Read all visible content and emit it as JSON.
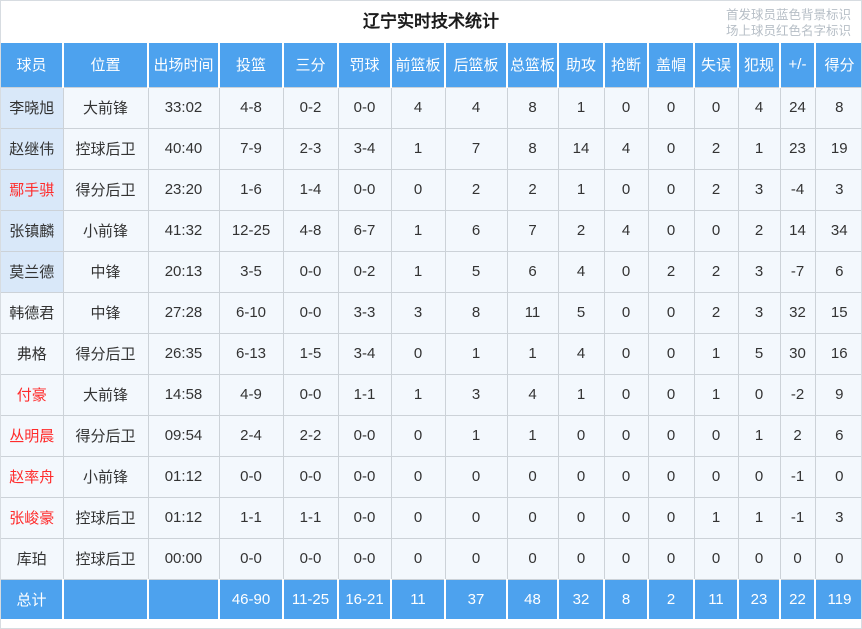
{
  "page": {
    "title": "辽宁实时技术统计",
    "legend_line1": "首发球员蓝色背景标识",
    "legend_line2": "场上球员红色名字标识"
  },
  "colors": {
    "header_blue": "#4da2ee",
    "starter_row_bg": "#d9e8f9",
    "oncourt_red": "#ff2b2b",
    "cell_bg": "#f3f8fd",
    "border": "#ccd2d8"
  },
  "table": {
    "columns": [
      "球员",
      "位置",
      "出场时间",
      "投篮",
      "三分",
      "罚球",
      "前篮板",
      "后篮板",
      "总篮板",
      "助攻",
      "抢断",
      "盖帽",
      "失误",
      "犯规",
      "+/-",
      "得分"
    ],
    "rows": [
      {
        "name": "李晓旭",
        "starter": true,
        "oncourt": false,
        "cells": [
          "大前锋",
          "33:02",
          "4-8",
          "0-2",
          "0-0",
          "4",
          "4",
          "8",
          "1",
          "0",
          "0",
          "0",
          "4",
          "24",
          "8"
        ]
      },
      {
        "name": "赵继伟",
        "starter": true,
        "oncourt": false,
        "cells": [
          "控球后卫",
          "40:40",
          "7-9",
          "2-3",
          "3-4",
          "1",
          "7",
          "8",
          "14",
          "4",
          "0",
          "2",
          "1",
          "23",
          "19"
        ]
      },
      {
        "name": "鄢手骐",
        "starter": true,
        "oncourt": true,
        "cells": [
          "得分后卫",
          "23:20",
          "1-6",
          "1-4",
          "0-0",
          "0",
          "2",
          "2",
          "1",
          "0",
          "0",
          "2",
          "3",
          "-4",
          "3"
        ]
      },
      {
        "name": "张镇麟",
        "starter": true,
        "oncourt": false,
        "cells": [
          "小前锋",
          "41:32",
          "12-25",
          "4-8",
          "6-7",
          "1",
          "6",
          "7",
          "2",
          "4",
          "0",
          "0",
          "2",
          "14",
          "34"
        ]
      },
      {
        "name": "莫兰德",
        "starter": true,
        "oncourt": false,
        "cells": [
          "中锋",
          "20:13",
          "3-5",
          "0-0",
          "0-2",
          "1",
          "5",
          "6",
          "4",
          "0",
          "2",
          "2",
          "3",
          "-7",
          "6"
        ]
      },
      {
        "name": "韩德君",
        "starter": false,
        "oncourt": false,
        "cells": [
          "中锋",
          "27:28",
          "6-10",
          "0-0",
          "3-3",
          "3",
          "8",
          "11",
          "5",
          "0",
          "0",
          "2",
          "3",
          "32",
          "15"
        ]
      },
      {
        "name": "弗格",
        "starter": false,
        "oncourt": false,
        "cells": [
          "得分后卫",
          "26:35",
          "6-13",
          "1-5",
          "3-4",
          "0",
          "1",
          "1",
          "4",
          "0",
          "0",
          "1",
          "5",
          "30",
          "16"
        ]
      },
      {
        "name": "付豪",
        "starter": false,
        "oncourt": true,
        "cells": [
          "大前锋",
          "14:58",
          "4-9",
          "0-0",
          "1-1",
          "1",
          "3",
          "4",
          "1",
          "0",
          "0",
          "1",
          "0",
          "-2",
          "9"
        ]
      },
      {
        "name": "丛明晨",
        "starter": false,
        "oncourt": true,
        "cells": [
          "得分后卫",
          "09:54",
          "2-4",
          "2-2",
          "0-0",
          "0",
          "1",
          "1",
          "0",
          "0",
          "0",
          "0",
          "1",
          "2",
          "6"
        ]
      },
      {
        "name": "赵率舟",
        "starter": false,
        "oncourt": true,
        "cells": [
          "小前锋",
          "01:12",
          "0-0",
          "0-0",
          "0-0",
          "0",
          "0",
          "0",
          "0",
          "0",
          "0",
          "0",
          "0",
          "-1",
          "0"
        ]
      },
      {
        "name": "张峻豪",
        "starter": false,
        "oncourt": true,
        "cells": [
          "控球后卫",
          "01:12",
          "1-1",
          "1-1",
          "0-0",
          "0",
          "0",
          "0",
          "0",
          "0",
          "0",
          "1",
          "1",
          "-1",
          "3"
        ]
      },
      {
        "name": "库珀",
        "starter": false,
        "oncourt": false,
        "cells": [
          "控球后卫",
          "00:00",
          "0-0",
          "0-0",
          "0-0",
          "0",
          "0",
          "0",
          "0",
          "0",
          "0",
          "0",
          "0",
          "0",
          "0"
        ]
      }
    ],
    "total": {
      "label": "总计",
      "cells": [
        "",
        "",
        "46-90",
        "11-25",
        "16-21",
        "11",
        "37",
        "48",
        "32",
        "8",
        "2",
        "11",
        "23",
        "22",
        "119"
      ]
    }
  }
}
